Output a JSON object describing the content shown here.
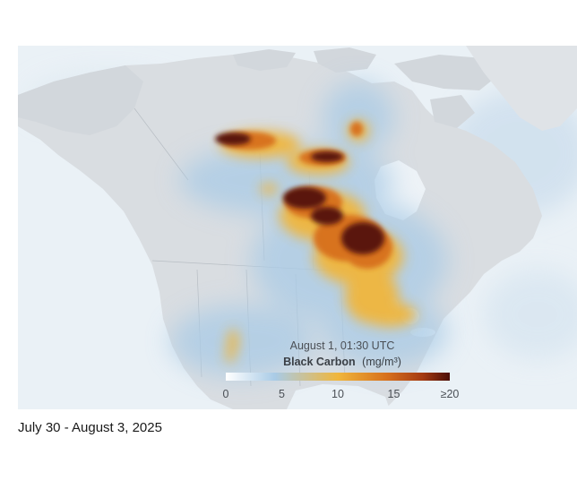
{
  "map": {
    "timestamp": "August 1, 01:30 UTC",
    "variable_title": "Black Carbon",
    "variable_units": "(mg/m³)",
    "legend": {
      "tick_labels": [
        "0",
        "5",
        "10",
        "15",
        "≥20"
      ],
      "tick_values": [
        0,
        5,
        10,
        15,
        20
      ],
      "range": [
        0,
        20
      ],
      "colors": [
        "#ffffff",
        "#a9cbe6",
        "#f0b63c",
        "#d7701c",
        "#a43a12",
        "#4a0e08"
      ]
    }
  },
  "caption": "July 30 - August 3, 2025"
}
